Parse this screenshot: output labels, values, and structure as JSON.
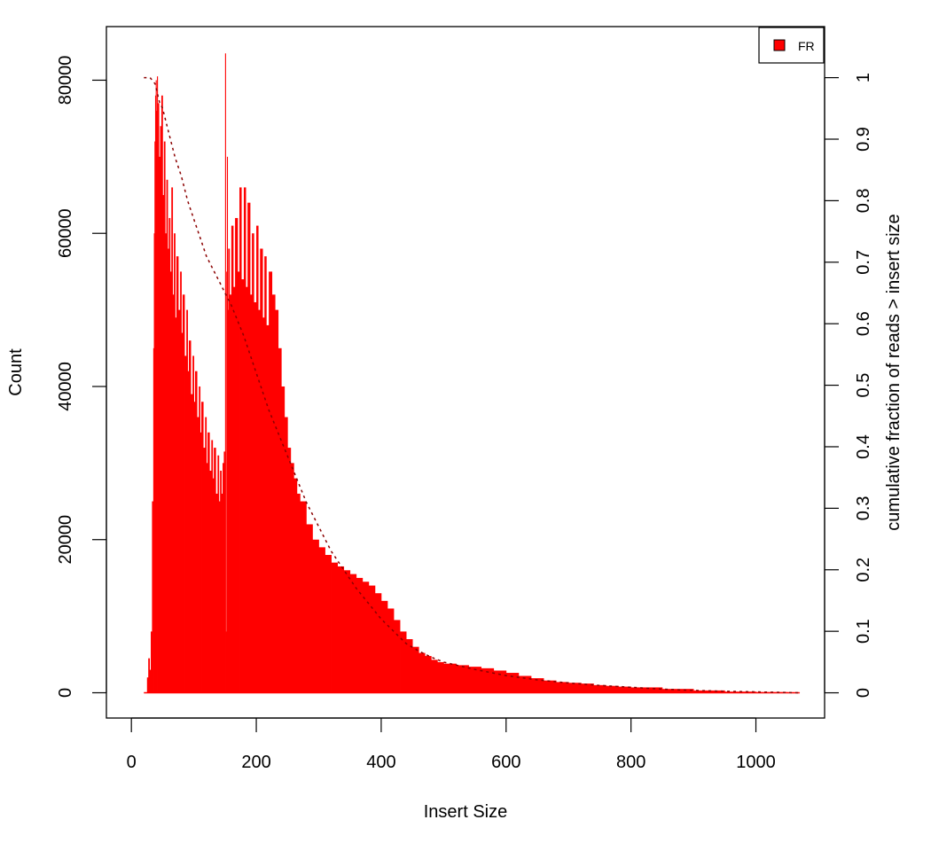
{
  "chart_data": {
    "type": "histogram",
    "title": "",
    "xlabel": "Insert Size",
    "ylabel": "Count",
    "y2label": "cumulative fraction of reads > insert size",
    "xlim": [
      -40,
      1110
    ],
    "ylim": [
      -3300,
      87000
    ],
    "y2lim": [
      -0.041,
      1.083
    ],
    "x_ticks": [
      0,
      200,
      400,
      600,
      800,
      1000
    ],
    "y_ticks": [
      0,
      20000,
      40000,
      60000,
      80000
    ],
    "y2_ticks": [
      0,
      0.1,
      0.2,
      0.3,
      0.4,
      0.5,
      0.6,
      0.7,
      0.8,
      0.9,
      1
    ],
    "y2_tick_labels": [
      "0",
      "0.1",
      "0.2",
      "0.3",
      "0.4",
      "0.5",
      "0.6",
      "0.7",
      "0.8",
      "0.9",
      "1"
    ],
    "grid": false,
    "legend": {
      "position": "top-right",
      "entries": [
        {
          "name": "FR",
          "color": "#ff0000"
        }
      ]
    },
    "series": [
      {
        "name": "FR",
        "type": "histogram",
        "color": "#ff0000",
        "x": [
          20,
          23,
          25,
          27,
          29,
          31,
          33,
          35,
          36,
          37,
          38,
          39,
          40,
          41,
          42,
          44,
          46,
          48,
          50,
          52,
          54,
          56,
          58,
          60,
          62,
          64,
          66,
          68,
          70,
          72,
          75,
          78,
          80,
          82,
          85,
          88,
          90,
          92,
          95,
          98,
          100,
          102,
          105,
          108,
          110,
          112,
          115,
          118,
          120,
          122,
          125,
          128,
          130,
          132,
          135,
          138,
          140,
          142,
          144,
          146,
          148,
          150,
          151,
          152,
          153,
          154,
          155,
          157,
          160,
          163,
          166,
          170,
          173,
          176,
          180,
          183,
          186,
          190,
          193,
          196,
          200,
          203,
          206,
          210,
          213,
          216,
          220,
          225,
          230,
          235,
          240,
          245,
          250,
          255,
          260,
          265,
          270,
          280,
          290,
          300,
          310,
          320,
          330,
          340,
          350,
          360,
          370,
          380,
          390,
          400,
          410,
          420,
          430,
          440,
          450,
          460,
          470,
          480,
          490,
          500,
          520,
          540,
          560,
          580,
          600,
          620,
          640,
          660,
          680,
          700,
          720,
          740,
          760,
          780,
          800,
          850,
          900,
          950,
          1000,
          1050,
          1070
        ],
        "values": [
          0,
          0,
          2000,
          4500,
          3000,
          8000,
          25000,
          45000,
          60000,
          72000,
          78000,
          80000,
          76000,
          80500,
          77000,
          70000,
          74000,
          78000,
          65000,
          72000,
          60000,
          67000,
          58000,
          62000,
          55000,
          66000,
          52000,
          60000,
          49000,
          57000,
          50000,
          55000,
          47000,
          52000,
          44000,
          50000,
          42000,
          46000,
          39000,
          44000,
          38000,
          42000,
          36000,
          40000,
          34000,
          38000,
          32000,
          36000,
          30000,
          34000,
          29000,
          33000,
          28000,
          32000,
          26000,
          31000,
          25000,
          29000,
          26000,
          30000,
          31500,
          83500,
          8000,
          55000,
          70000,
          50000,
          58000,
          52000,
          61000,
          53000,
          62000,
          55000,
          66000,
          54000,
          66000,
          53000,
          64000,
          52000,
          60000,
          51000,
          61000,
          50000,
          58000,
          49000,
          57000,
          48000,
          55000,
          52000,
          50000,
          45000,
          40000,
          36000,
          32000,
          30000,
          28000,
          26000,
          25000,
          22000,
          20000,
          19000,
          18000,
          17000,
          16500,
          16000,
          15500,
          15000,
          14500,
          14000,
          13000,
          12000,
          11000,
          9500,
          8000,
          7000,
          6000,
          5200,
          4800,
          4300,
          4000,
          3800,
          3600,
          3400,
          3200,
          2900,
          2600,
          2200,
          1900,
          1600,
          1400,
          1300,
          1200,
          1000,
          900,
          800,
          700,
          500,
          300,
          150,
          80,
          20,
          0
        ]
      },
      {
        "name": "cumulative",
        "type": "line",
        "style": "dashed",
        "color": "#8b0000",
        "axis": "right",
        "x": [
          20,
          30,
          38,
          45,
          50,
          60,
          70,
          80,
          90,
          100,
          110,
          120,
          130,
          140,
          150,
          160,
          180,
          200,
          220,
          240,
          260,
          280,
          300,
          320,
          340,
          360,
          380,
          400,
          420,
          440,
          460,
          480,
          500,
          550,
          600,
          650,
          700,
          750,
          800,
          850,
          900,
          950,
          1000,
          1050,
          1070
        ],
        "values": [
          1.0,
          1.0,
          0.99,
          0.96,
          0.95,
          0.91,
          0.87,
          0.84,
          0.8,
          0.77,
          0.74,
          0.71,
          0.69,
          0.67,
          0.65,
          0.63,
          0.58,
          0.52,
          0.46,
          0.41,
          0.36,
          0.31,
          0.27,
          0.23,
          0.2,
          0.17,
          0.145,
          0.12,
          0.1,
          0.08,
          0.068,
          0.058,
          0.05,
          0.038,
          0.028,
          0.021,
          0.016,
          0.012,
          0.009,
          0.006,
          0.004,
          0.0025,
          0.0015,
          0.0005,
          0
        ]
      }
    ]
  }
}
